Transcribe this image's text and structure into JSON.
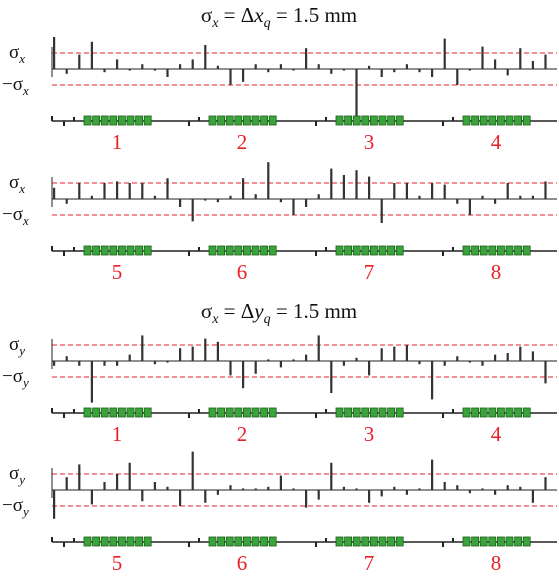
{
  "chart_data": [
    {
      "type": "bar",
      "title": "σx = Δxq = 1.5 mm",
      "title_parts": {
        "a": "σ",
        "a_sub": "x",
        "b": " = Δ",
        "c": "x",
        "c_sub": "q",
        "d": " = 1.5 mm"
      },
      "ylabel_upper": "σ",
      "ylabel_upper_sub": "x",
      "ylabel_lower": "−σ",
      "ylabel_lower_sub": "x",
      "threshold": 1.0,
      "ylim": [
        -3.2,
        2.2
      ],
      "cells": [
        "1",
        "2",
        "3",
        "4"
      ],
      "values": [
        2.0,
        -0.3,
        0.9,
        1.7,
        -0.2,
        0.6,
        -0.1,
        0.3,
        -0.1,
        -0.5,
        0.3,
        0.6,
        1.5,
        0.2,
        -1.0,
        -0.8,
        0.3,
        -0.2,
        0.3,
        -0.1,
        1.3,
        0.3,
        -0.3,
        -0.1,
        -3.1,
        0.2,
        -0.5,
        -0.2,
        0.3,
        -0.2,
        -0.5,
        1.9,
        -1.0,
        -0.1,
        1.4,
        0.6,
        -0.4,
        1.3,
        0.5,
        0.9
      ]
    },
    {
      "type": "bar",
      "ylabel_upper": "σ",
      "ylabel_upper_sub": "x",
      "ylabel_lower": "−σ",
      "ylabel_lower_sub": "x",
      "threshold": 1.0,
      "ylim": [
        -3.2,
        2.2
      ],
      "cells": [
        "5",
        "6",
        "7",
        "8"
      ],
      "values": [
        0.7,
        -0.3,
        1.0,
        0.2,
        1.0,
        1.1,
        1.0,
        1.0,
        0.2,
        1.3,
        -0.5,
        -1.4,
        -0.1,
        -0.2,
        0.2,
        1.3,
        0.3,
        2.3,
        -0.2,
        -1.0,
        -0.5,
        0.3,
        1.9,
        1.5,
        1.8,
        1.4,
        -1.5,
        1.0,
        1.0,
        0.2,
        1.0,
        0.9,
        -0.3,
        -1.0,
        0.2,
        -0.3,
        1.0,
        0.2,
        0.2,
        1.1
      ]
    },
    {
      "type": "bar",
      "title": "σx = Δyq = 1.5 mm",
      "title_parts": {
        "a": "σ",
        "a_sub": "x",
        "b": " = Δ",
        "c": "y",
        "c_sub": "q",
        "d": " = 1.5 mm"
      },
      "ylabel_upper": "σ",
      "ylabel_upper_sub": "y",
      "ylabel_lower": "−σ",
      "ylabel_lower_sub": "y",
      "threshold": 1.0,
      "ylim": [
        -3.2,
        2.2
      ],
      "cells": [
        "1",
        "2",
        "3",
        "4"
      ],
      "values": [
        -0.3,
        0.3,
        -0.3,
        -2.6,
        -0.3,
        -0.3,
        0.4,
        1.6,
        -0.2,
        -0.1,
        0.8,
        0.9,
        1.4,
        1.2,
        -0.9,
        -1.7,
        -0.8,
        0.1,
        -0.4,
        0.1,
        0.4,
        1.6,
        -2.0,
        -0.3,
        0.2,
        -0.9,
        0.8,
        0.9,
        1.0,
        -0.2,
        -2.4,
        -0.3,
        0.3,
        -0.1,
        -0.3,
        0.4,
        0.5,
        0.9,
        0.6,
        -1.4
      ]
    },
    {
      "type": "bar",
      "ylabel_upper": "σ",
      "ylabel_upper_sub": "y",
      "ylabel_lower": "−σ",
      "ylabel_lower_sub": "y",
      "threshold": 1.0,
      "ylim": [
        -3.2,
        2.2
      ],
      "cells": [
        "5",
        "6",
        "7",
        "8"
      ],
      "values": [
        -1.8,
        0.8,
        1.6,
        -0.9,
        0.5,
        1.0,
        1.7,
        -0.7,
        0.5,
        0.2,
        -1.0,
        2.4,
        -0.8,
        -0.3,
        0.3,
        0.1,
        0.1,
        0.2,
        0.9,
        0.1,
        -1.1,
        -0.6,
        1.7,
        0.2,
        0.1,
        -0.8,
        -0.4,
        0.2,
        -0.3,
        0.1,
        1.9,
        0.5,
        0.3,
        -0.2,
        0.1,
        -0.3,
        0.3,
        0.2,
        -0.8,
        0.8
      ]
    }
  ]
}
